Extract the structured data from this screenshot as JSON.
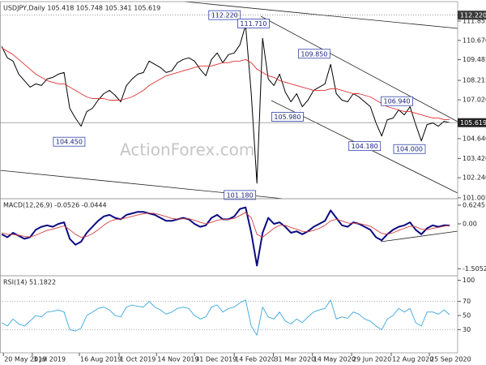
{
  "chart_data": [
    {
      "type": "line",
      "title": "USDJPY,Daily 105.418 105.748 105.341 105.619",
      "watermark": "ActionForex.com",
      "xlim": [
        -0.3,
        80.4
      ],
      "ylim": [
        100.95,
        112.9
      ],
      "yticks": [
        111.855,
        {
          "value": 110.67,
          "label": "110.670"
        },
        109.485,
        108.215,
        {
          "value": 107.02,
          "label": "107.020"
        },
        {
          "value": 104.64,
          "label": "104.640"
        },
        {
          "value": 103.42,
          "label": "103.420"
        },
        {
          "value": 102.24,
          "label": "102.240"
        },
        101.005
      ],
      "series": [
        {
          "color": "#000000",
          "values": [
            110.3,
            109.6,
            109.4,
            108.6,
            108.2,
            107.8,
            108.0,
            107.9,
            108.3,
            108.4,
            108.6,
            108.7,
            106.5,
            105.9,
            105.4,
            106.3,
            106.5,
            107.0,
            107.4,
            107.6,
            107.3,
            106.9,
            107.9,
            108.3,
            108.6,
            108.7,
            109.4,
            109.2,
            109.0,
            108.7,
            108.8,
            109.3,
            109.5,
            109.6,
            109.4,
            108.9,
            108.5,
            109.5,
            109.9,
            109.3,
            109.8,
            109.9,
            110.4,
            111.6,
            107.4,
            101.9,
            110.8,
            108.3,
            107.9,
            108.6,
            107.5,
            106.9,
            107.4,
            106.6,
            107.0,
            107.6,
            107.8,
            108.0,
            109.2,
            107.4,
            107.0,
            106.9,
            107.4,
            107.2,
            106.9,
            106.6,
            105.6,
            104.8,
            105.8,
            105.9,
            106.4,
            106.1,
            106.6,
            105.5,
            104.5,
            105.5,
            105.6,
            105.4,
            105.7,
            105.619
          ]
        },
        {
          "color": "#e03030",
          "values": [
            110.2,
            110.0,
            109.8,
            109.5,
            109.2,
            108.9,
            108.6,
            108.4,
            108.2,
            108.1,
            108.0,
            108.0,
            107.8,
            107.6,
            107.4,
            107.2,
            107.1,
            107.1,
            107.1,
            107.0,
            107.0,
            107.0,
            107.1,
            107.2,
            107.4,
            107.6,
            107.9,
            108.1,
            108.3,
            108.5,
            108.6,
            108.7,
            108.8,
            108.9,
            109.0,
            109.1,
            109.1,
            109.1,
            109.2,
            109.3,
            109.3,
            109.4,
            109.4,
            109.5,
            109.3,
            108.9,
            108.7,
            108.5,
            108.4,
            108.2,
            108.1,
            108.0,
            107.9,
            107.8,
            107.7,
            107.6,
            107.6,
            107.6,
            107.7,
            107.7,
            107.6,
            107.5,
            107.4,
            107.4,
            107.3,
            107.2,
            107.0,
            106.8,
            106.6,
            106.5,
            106.4,
            106.3,
            106.3,
            106.2,
            106.1,
            106.0,
            105.9,
            105.9,
            105.8,
            105.8
          ]
        }
      ],
      "annotations": [
        {
          "label": "112.220",
          "value": 112.22,
          "x": 39.3
        },
        {
          "label": "111.710",
          "value": 111.71,
          "x": 44.4
        },
        {
          "label": "109.850",
          "value": 109.85,
          "x": 55.1
        },
        {
          "label": "105.980",
          "value": 105.98,
          "x": 50.4
        },
        {
          "label": "106.940",
          "value": 106.94,
          "x": 69.7
        },
        {
          "label": "104.450",
          "value": 104.45,
          "x": 11.9
        },
        {
          "label": "104.180",
          "value": 104.18,
          "x": 64
        },
        {
          "label": "104.000",
          "value": 104.0,
          "x": 71.9
        },
        {
          "label": "101.180",
          "value": 101.18,
          "x": 42
        }
      ]
    },
    {
      "type": "line",
      "title": "MACD(12,26,9) -0.0526 -0.0444",
      "xlim": [
        -0.3,
        80.4
      ],
      "ylim": [
        -1.74,
        0.76
      ],
      "yticks": [
        0.6245,
        {
          "value": 0,
          "label": "0.00"
        },
        -1.5052
      ],
      "series": [
        {
          "color": "#0a0a80",
          "values": [
            -0.35,
            -0.45,
            -0.3,
            -0.4,
            -0.5,
            -0.45,
            -0.2,
            -0.1,
            -0.05,
            -0.1,
            0.0,
            0.05,
            -0.5,
            -0.7,
            -0.6,
            -0.3,
            -0.1,
            0.1,
            0.25,
            0.3,
            0.2,
            0.15,
            0.3,
            0.35,
            0.4,
            0.4,
            0.35,
            0.3,
            0.2,
            0.1,
            0.1,
            0.15,
            0.2,
            0.15,
            0.0,
            -0.1,
            -0.05,
            0.2,
            0.3,
            0.15,
            0.15,
            0.25,
            0.5,
            0.55,
            -0.3,
            -1.4,
            -0.3,
            0.2,
            0.0,
            0.05,
            -0.1,
            -0.3,
            -0.25,
            -0.35,
            -0.25,
            -0.1,
            0.0,
            0.1,
            0.45,
            0.2,
            -0.05,
            -0.1,
            0.05,
            0.0,
            -0.1,
            -0.2,
            -0.45,
            -0.55,
            -0.35,
            -0.2,
            -0.1,
            -0.05,
            0.05,
            -0.2,
            -0.35,
            -0.15,
            -0.05,
            -0.1,
            -0.05,
            -0.0526
          ]
        },
        {
          "color": "#d04040",
          "values": [
            -0.3,
            -0.35,
            -0.36,
            -0.38,
            -0.42,
            -0.44,
            -0.38,
            -0.3,
            -0.22,
            -0.18,
            -0.12,
            -0.07,
            -0.2,
            -0.35,
            -0.45,
            -0.42,
            -0.33,
            -0.2,
            -0.05,
            0.08,
            0.14,
            0.16,
            0.2,
            0.25,
            0.3,
            0.34,
            0.36,
            0.35,
            0.3,
            0.24,
            0.18,
            0.16,
            0.17,
            0.17,
            0.12,
            0.05,
            0.0,
            0.05,
            0.12,
            0.15,
            0.15,
            0.18,
            0.28,
            0.38,
            0.2,
            -0.35,
            -0.45,
            -0.3,
            -0.15,
            -0.05,
            -0.05,
            -0.12,
            -0.18,
            -0.25,
            -0.27,
            -0.22,
            -0.15,
            -0.05,
            0.1,
            0.15,
            0.1,
            0.03,
            0.02,
            0.01,
            -0.03,
            -0.08,
            -0.2,
            -0.32,
            -0.35,
            -0.3,
            -0.22,
            -0.15,
            -0.08,
            -0.1,
            -0.18,
            -0.2,
            -0.15,
            -0.12,
            -0.08,
            -0.0444
          ]
        }
      ]
    },
    {
      "type": "line",
      "title": "RSI(14) 51.1822",
      "xlim": [
        -0.3,
        80.4
      ],
      "ylim": [
        -3,
        103
      ],
      "yticks": [
        100,
        70,
        50,
        30
      ],
      "levels": [
        70,
        30
      ],
      "xticks": [
        {
          "value": 0.3,
          "label": "20 May 2019"
        },
        {
          "value": 5.4,
          "label": "3 Jul 2019"
        },
        {
          "value": 13.7,
          "label": "16 Aug 2019"
        },
        {
          "value": 20.7,
          "label": "1 Oct 2019"
        },
        {
          "value": 27.3,
          "label": "14 Nov 2019"
        },
        {
          "value": 34,
          "label": "31 Dec 2019"
        },
        {
          "value": 41,
          "label": "14 Feb 2020"
        },
        {
          "value": 47.9,
          "label": "31 Mar 2020"
        },
        {
          "value": 54.8,
          "label": "14 May 2020"
        },
        {
          "value": 61.7,
          "label": "29 Jun 2020"
        },
        {
          "value": 68.7,
          "label": "12 Aug 2020"
        },
        {
          "value": 75.4,
          "label": "25 Sep 2020"
        }
      ],
      "series": [
        {
          "color": "#3aa6e0",
          "values": [
            40,
            35,
            45,
            38,
            35,
            42,
            50,
            48,
            55,
            56,
            58,
            55,
            30,
            28,
            32,
            50,
            55,
            60,
            62,
            58,
            50,
            48,
            62,
            65,
            63,
            62,
            70,
            62,
            58,
            52,
            55,
            60,
            62,
            60,
            50,
            45,
            48,
            62,
            65,
            55,
            60,
            62,
            68,
            72,
            35,
            22,
            62,
            48,
            45,
            55,
            42,
            38,
            45,
            40,
            48,
            55,
            58,
            60,
            72,
            45,
            48,
            46,
            55,
            52,
            45,
            42,
            35,
            30,
            45,
            50,
            60,
            55,
            60,
            40,
            35,
            55,
            55,
            52,
            58,
            51.1822
          ]
        }
      ]
    }
  ]
}
